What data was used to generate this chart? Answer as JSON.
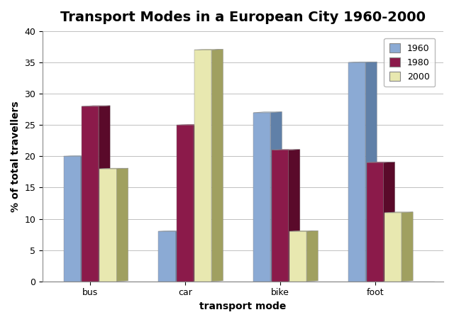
{
  "title": "Transport Modes in a European City 1960-2000",
  "xlabel": "transport mode",
  "ylabel": "% of total travellers",
  "categories": [
    "bus",
    "car",
    "bike",
    "foot"
  ],
  "years": [
    "1960",
    "1980",
    "2000"
  ],
  "values": {
    "1960": [
      20,
      8,
      27,
      35
    ],
    "1980": [
      28,
      25,
      21,
      19
    ],
    "2000": [
      18,
      37,
      8,
      11
    ]
  },
  "bar_colors": {
    "1960": "#8BAAD4",
    "1980": "#8B1A4A",
    "2000": "#E8E8B0"
  },
  "bar_side_colors": {
    "1960": "#6080A8",
    "1980": "#5A0A2A",
    "2000": "#A0A060"
  },
  "bar_top_colors": {
    "1960": "#A0C0E0",
    "1980": "#A03060",
    "2000": "#D0D090"
  },
  "ylim": [
    0,
    40
  ],
  "yticks": [
    0,
    5,
    10,
    15,
    20,
    25,
    30,
    35,
    40
  ],
  "bar_width": 0.18,
  "depth": 0.06,
  "fig_bg": "#ffffff",
  "plot_bg": "#ffffff",
  "outer_bg": "#ffffff",
  "grid_color": "#c0c0c0",
  "title_fontsize": 14,
  "axis_label_fontsize": 10,
  "tick_fontsize": 9,
  "legend_facecolor": "#ffffff",
  "floor_color": "#b0b0b0"
}
